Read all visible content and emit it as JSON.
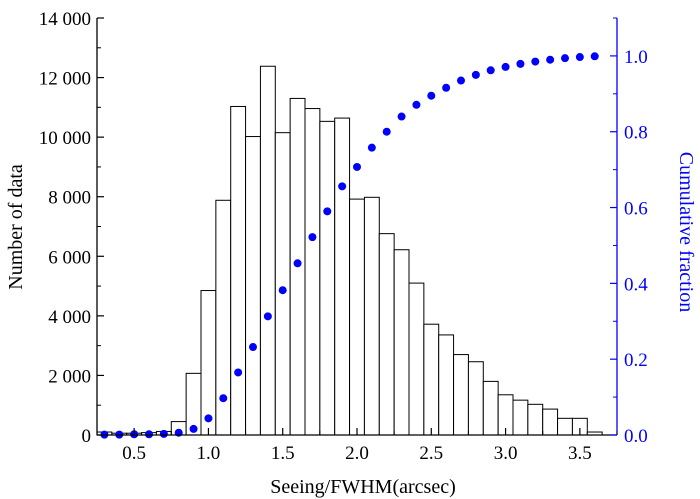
{
  "chart_data": {
    "type": "bar",
    "xlabel": "Seeing/FWHM(arcsec)",
    "ylabel": "Number of data",
    "y2label": "Cumulative fraction",
    "xlim": [
      0.25,
      3.75
    ],
    "ylim": [
      0,
      14000
    ],
    "y2lim": [
      0,
      1.1
    ],
    "bin_width": 0.1,
    "x_ticks": [
      "0.5",
      "1.0",
      "1.5",
      "2.0",
      "2.5",
      "3.0",
      "3.5"
    ],
    "y_ticks": [
      "0",
      "2 000",
      "4 000",
      "6 000",
      "8 000",
      "10 000",
      "12 000",
      "14 000"
    ],
    "y2_ticks": [
      "0.0",
      "0.2",
      "0.4",
      "0.6",
      "0.8",
      "1.0"
    ],
    "colors": {
      "histogram": "#000000",
      "cumulative": "#0000ff"
    },
    "histogram": {
      "bin_start": [
        0.25,
        0.35,
        0.45,
        0.55,
        0.65,
        0.75,
        0.85,
        0.95,
        1.05,
        1.15,
        1.25,
        1.35,
        1.45,
        1.55,
        1.65,
        1.75,
        1.85,
        1.95,
        2.05,
        2.15,
        2.25,
        2.35,
        2.45,
        2.55,
        2.65,
        2.75,
        2.85,
        2.95,
        3.05,
        3.15,
        3.25,
        3.35,
        3.45,
        3.55
      ],
      "counts": [
        100,
        60,
        60,
        80,
        120,
        450,
        2070,
        4850,
        7880,
        11030,
        10020,
        12380,
        10150,
        11300,
        10960,
        10530,
        10640,
        7920,
        7980,
        6760,
        6220,
        5100,
        3720,
        3360,
        2700,
        2460,
        1800,
        1350,
        1170,
        1030,
        870,
        560,
        560,
        100
      ]
    },
    "cumulative": {
      "x": [
        0.3,
        0.4,
        0.5,
        0.6,
        0.7,
        0.8,
        0.9,
        1.0,
        1.1,
        1.2,
        1.3,
        1.4,
        1.5,
        1.6,
        1.7,
        1.8,
        1.9,
        2.0,
        2.1,
        2.2,
        2.3,
        2.4,
        2.5,
        2.6,
        2.7,
        2.8,
        2.9,
        3.0,
        3.1,
        3.2,
        3.3,
        3.4,
        3.5,
        3.6
      ],
      "y": [
        0.001,
        0.001,
        0.002,
        0.002,
        0.003,
        0.006,
        0.016,
        0.044,
        0.097,
        0.165,
        0.232,
        0.313,
        0.382,
        0.453,
        0.522,
        0.59,
        0.656,
        0.707,
        0.758,
        0.8,
        0.84,
        0.871,
        0.895,
        0.916,
        0.935,
        0.95,
        0.962,
        0.971,
        0.979,
        0.985,
        0.99,
        0.994,
        0.997,
        0.999
      ]
    }
  }
}
